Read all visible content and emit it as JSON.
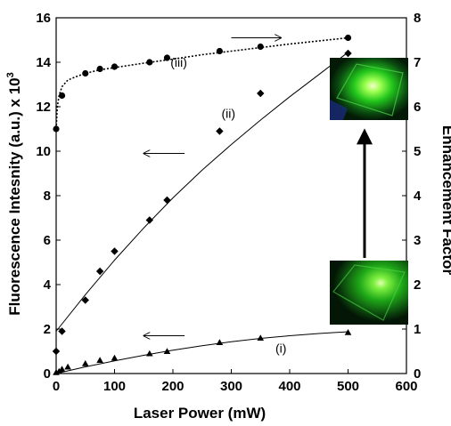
{
  "chart_data": {
    "type": "scatter",
    "xlabel": "Laser Power (mW)",
    "ylabel_left": "Fluorescence Intesnity (a.u.) x 10",
    "ylabel_left_superscript": "3",
    "ylabel_right": "Enhancement Factor",
    "xlim": [
      0,
      600
    ],
    "ylim_left": [
      0,
      16
    ],
    "ylim_right": [
      0,
      8
    ],
    "xticks": [
      "0",
      "100",
      "200",
      "300",
      "400",
      "500",
      "600"
    ],
    "yticks_left": [
      "0",
      "2",
      "4",
      "6",
      "8",
      "10",
      "12",
      "14",
      "16"
    ],
    "yticks_right": [
      "0",
      "1",
      "2",
      "3",
      "4",
      "5",
      "6",
      "7",
      "8"
    ],
    "grid": false,
    "series": [
      {
        "name": "(i)",
        "axis": "left",
        "marker": "triangle",
        "line": "solid",
        "x": [
          0,
          5,
          10,
          20,
          50,
          75,
          100,
          160,
          190,
          280,
          350,
          500
        ],
        "y": [
          0.05,
          0.1,
          0.2,
          0.3,
          0.45,
          0.6,
          0.7,
          0.9,
          1.0,
          1.4,
          1.6,
          1.85
        ],
        "fit_x": [
          0,
          50,
          100,
          150,
          200,
          250,
          300,
          350,
          400,
          450,
          500
        ],
        "fit_y": [
          0.0,
          0.3,
          0.57,
          0.82,
          1.05,
          1.25,
          1.43,
          1.58,
          1.7,
          1.8,
          1.88
        ]
      },
      {
        "name": "(ii)",
        "axis": "left",
        "marker": "diamond",
        "line": "solid",
        "x": [
          0,
          10,
          50,
          75,
          100,
          160,
          190,
          280,
          350,
          500
        ],
        "y": [
          1.0,
          1.9,
          3.3,
          4.6,
          5.5,
          6.9,
          7.8,
          10.9,
          12.6,
          14.4
        ],
        "fit_x": [
          0,
          50,
          100,
          150,
          200,
          250,
          300,
          350,
          400,
          450,
          500
        ],
        "fit_y": [
          1.9,
          3.55,
          5.1,
          6.55,
          7.9,
          9.15,
          10.3,
          11.4,
          12.45,
          13.45,
          14.45
        ]
      },
      {
        "name": "(iii)",
        "axis": "right",
        "marker": "circle",
        "line": "dotted",
        "x": [
          0,
          10,
          50,
          75,
          100,
          160,
          190,
          280,
          350,
          500
        ],
        "y": [
          5.5,
          6.25,
          6.75,
          6.85,
          6.9,
          7.0,
          7.1,
          7.25,
          7.35,
          7.55
        ],
        "fit_x": [
          0,
          2,
          5,
          10,
          20,
          35,
          50,
          75,
          100,
          150,
          200,
          250,
          300,
          350,
          400,
          450,
          500
        ],
        "fit_y": [
          5.5,
          6.0,
          6.25,
          6.45,
          6.6,
          6.68,
          6.75,
          6.83,
          6.88,
          6.98,
          7.07,
          7.17,
          7.25,
          7.33,
          7.41,
          7.48,
          7.55
        ]
      }
    ],
    "series_label_positions": [
      {
        "label": "(i)",
        "x": 385,
        "y": 0.95
      },
      {
        "label": "(ii)",
        "x": 295,
        "y": 11.5
      },
      {
        "label": "(iii)",
        "x": 210,
        "y": 13.8
      }
    ],
    "arrows": [
      {
        "series": "(iii)",
        "direction": "right",
        "x1": 300,
        "x2": 385,
        "y": 15.1,
        "axis": "left"
      },
      {
        "series": "(ii)",
        "direction": "left",
        "x1": 220,
        "x2": 150,
        "y": 9.9,
        "axis": "left"
      },
      {
        "series": "(i)",
        "direction": "left",
        "x1": 220,
        "x2": 150,
        "y": 1.7,
        "axis": "left"
      }
    ],
    "insets": [
      {
        "name": "inset-photo-top",
        "description_color": "#22cc22"
      },
      {
        "name": "inset-photo-bottom",
        "description_color": "#22cc22"
      }
    ]
  }
}
